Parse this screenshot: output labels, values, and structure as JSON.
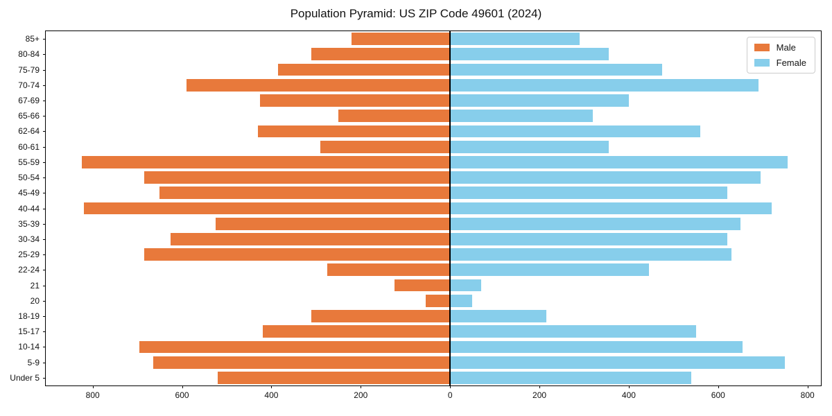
{
  "title": "Population Pyramid: US ZIP Code 49601 (2024)",
  "legend": {
    "male_label": "Male",
    "female_label": "Female"
  },
  "colors": {
    "male": "#e8793b",
    "female": "#87ceeb",
    "axis": "#000000",
    "legend_border": "#cccccc"
  },
  "chart_data": {
    "type": "bar",
    "subtype": "population-pyramid",
    "title": "Population Pyramid: US ZIP Code 49601 (2024)",
    "xlabel": "",
    "ylabel": "",
    "grid": false,
    "legend_position": "upper right",
    "categories": [
      "85+",
      "80-84",
      "75-79",
      "70-74",
      "67-69",
      "65-66",
      "62-64",
      "60-61",
      "55-59",
      "50-54",
      "45-49",
      "40-44",
      "35-39",
      "30-34",
      "25-29",
      "22-24",
      "21",
      "20",
      "18-19",
      "15-17",
      "10-14",
      "5-9",
      "Under 5"
    ],
    "series": [
      {
        "name": "Male",
        "side": "left",
        "color": "#e8793b",
        "values": [
          220,
          310,
          385,
          590,
          425,
          250,
          430,
          290,
          825,
          685,
          650,
          820,
          525,
          625,
          685,
          275,
          125,
          55,
          310,
          420,
          695,
          665,
          520
        ]
      },
      {
        "name": "Female",
        "side": "right",
        "color": "#87ceeb",
        "values": [
          290,
          355,
          475,
          690,
          400,
          320,
          560,
          355,
          755,
          695,
          620,
          720,
          650,
          620,
          630,
          445,
          70,
          50,
          215,
          550,
          655,
          750,
          540
        ]
      }
    ],
    "x_tick_values": [
      -800,
      -600,
      -400,
      -200,
      0,
      200,
      400,
      600,
      800
    ],
    "x_tick_labels": [
      "800",
      "600",
      "400",
      "200",
      "0",
      "200",
      "400",
      "600",
      "800"
    ],
    "xlim": [
      -905,
      830
    ]
  }
}
